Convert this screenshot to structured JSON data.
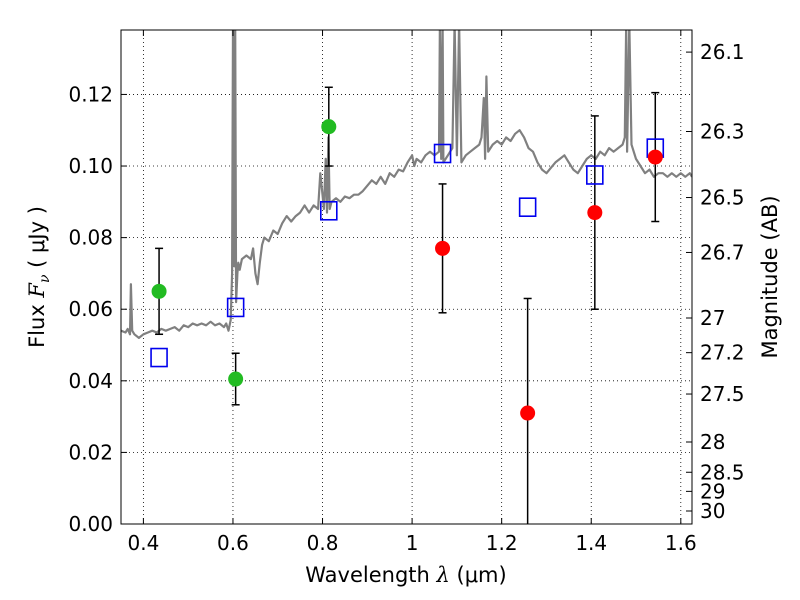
{
  "chart_data": {
    "type": "scatter",
    "xlabel_text": "Wavelength  ",
    "xlabel_symbol": "λ",
    "xlabel_unit": " (μm)",
    "ylabel_text": "Flux  ",
    "ylabel_symbol": "F",
    "ylabel_subscript": "ν",
    "ylabel_unit": "  ( μJy )",
    "y2label": "Magnitude (AB)",
    "xlim": [
      0.35,
      1.625
    ],
    "ylim": [
      0.0,
      0.138
    ],
    "grid": true,
    "x_ticks": [
      0.4,
      0.6,
      0.8,
      1.0,
      1.2,
      1.4,
      1.6
    ],
    "x_tick_labels": [
      "0.4",
      "0.6",
      "0.8",
      "1",
      "1.2",
      "1.4",
      "1.6"
    ],
    "y_ticks": [
      0.0,
      0.02,
      0.04,
      0.06,
      0.08,
      0.1,
      0.12
    ],
    "y_tick_labels": [
      "0.00",
      "0.02",
      "0.04",
      "0.06",
      "0.08",
      "0.10",
      "0.12"
    ],
    "y2_ticks": [
      {
        "mag": 26.1,
        "label": "26.1"
      },
      {
        "mag": 26.3,
        "label": "26.3"
      },
      {
        "mag": 26.5,
        "label": "26.5"
      },
      {
        "mag": 26.7,
        "label": "26.7"
      },
      {
        "mag": 27.0,
        "label": "27"
      },
      {
        "mag": 27.2,
        "label": "27.2"
      },
      {
        "mag": 27.5,
        "label": "27.5"
      },
      {
        "mag": 28.0,
        "label": "28"
      },
      {
        "mag": 28.5,
        "label": "28.5"
      },
      {
        "mag": 29.0,
        "label": "29"
      },
      {
        "mag": 30.0,
        "label": "30"
      }
    ],
    "colors": {
      "model": "#808080",
      "green": "#22bb22",
      "red": "#ff0000",
      "model_box": "#0000ee",
      "errorbar": "#000000"
    },
    "model_spectrum": {
      "x": [
        0.35,
        0.36,
        0.365,
        0.37,
        0.372,
        0.375,
        0.38,
        0.39,
        0.4,
        0.41,
        0.42,
        0.43,
        0.44,
        0.45,
        0.46,
        0.47,
        0.48,
        0.49,
        0.5,
        0.51,
        0.52,
        0.53,
        0.54,
        0.55,
        0.56,
        0.57,
        0.58,
        0.585,
        0.59,
        0.595,
        0.598,
        0.6,
        0.603,
        0.605,
        0.607,
        0.61,
        0.612,
        0.615,
        0.62,
        0.63,
        0.64,
        0.645,
        0.65,
        0.655,
        0.66,
        0.665,
        0.67,
        0.68,
        0.69,
        0.7,
        0.71,
        0.72,
        0.73,
        0.74,
        0.75,
        0.76,
        0.77,
        0.78,
        0.79,
        0.795,
        0.8,
        0.803,
        0.807,
        0.81,
        0.813,
        0.816,
        0.82,
        0.83,
        0.84,
        0.85,
        0.86,
        0.87,
        0.88,
        0.89,
        0.9,
        0.91,
        0.92,
        0.93,
        0.94,
        0.95,
        0.96,
        0.97,
        0.98,
        0.99,
        1.0,
        1.005,
        1.01,
        1.02,
        1.03,
        1.04,
        1.05,
        1.06,
        1.062,
        1.065,
        1.068,
        1.07,
        1.08,
        1.09,
        1.095,
        1.1,
        1.105,
        1.11,
        1.12,
        1.13,
        1.14,
        1.15,
        1.155,
        1.16,
        1.163,
        1.166,
        1.17,
        1.18,
        1.19,
        1.2,
        1.21,
        1.22,
        1.23,
        1.24,
        1.25,
        1.26,
        1.27,
        1.28,
        1.29,
        1.3,
        1.31,
        1.32,
        1.33,
        1.34,
        1.35,
        1.36,
        1.37,
        1.38,
        1.39,
        1.4,
        1.41,
        1.42,
        1.43,
        1.44,
        1.45,
        1.46,
        1.47,
        1.475,
        1.478,
        1.48,
        1.485,
        1.49,
        1.5,
        1.51,
        1.52,
        1.53,
        1.54,
        1.55,
        1.56,
        1.57,
        1.58,
        1.59,
        1.6,
        1.61,
        1.62,
        1.625
      ],
      "y": [
        0.054,
        0.0535,
        0.0545,
        0.053,
        0.067,
        0.054,
        0.053,
        0.052,
        0.053,
        0.0535,
        0.054,
        0.0535,
        0.0545,
        0.054,
        0.0545,
        0.055,
        0.054,
        0.0555,
        0.055,
        0.056,
        0.0555,
        0.056,
        0.0555,
        0.0565,
        0.0555,
        0.056,
        0.055,
        0.056,
        0.054,
        0.057,
        0.07,
        0.14,
        0.072,
        0.14,
        0.062,
        0.07,
        0.073,
        0.071,
        0.074,
        0.075,
        0.074,
        0.077,
        0.07,
        0.067,
        0.073,
        0.078,
        0.08,
        0.079,
        0.082,
        0.081,
        0.084,
        0.086,
        0.0845,
        0.086,
        0.087,
        0.089,
        0.087,
        0.089,
        0.088,
        0.098,
        0.092,
        0.088,
        0.102,
        0.087,
        0.108,
        0.088,
        0.09,
        0.091,
        0.09,
        0.0915,
        0.091,
        0.092,
        0.092,
        0.093,
        0.0945,
        0.096,
        0.095,
        0.097,
        0.095,
        0.098,
        0.097,
        0.099,
        0.0985,
        0.101,
        0.103,
        0.1,
        0.102,
        0.101,
        0.103,
        0.104,
        0.103,
        0.104,
        0.14,
        0.102,
        0.14,
        0.101,
        0.103,
        0.105,
        0.14,
        0.103,
        0.14,
        0.101,
        0.103,
        0.104,
        0.105,
        0.106,
        0.108,
        0.119,
        0.102,
        0.125,
        0.104,
        0.106,
        0.107,
        0.106,
        0.108,
        0.107,
        0.109,
        0.11,
        0.108,
        0.105,
        0.104,
        0.101,
        0.099,
        0.098,
        0.0995,
        0.101,
        0.102,
        0.103,
        0.101,
        0.099,
        0.098,
        0.1,
        0.102,
        0.103,
        0.102,
        0.104,
        0.103,
        0.105,
        0.104,
        0.105,
        0.106,
        0.108,
        0.14,
        0.104,
        0.14,
        0.106,
        0.102,
        0.1,
        0.098,
        0.099,
        0.097,
        0.098,
        0.098,
        0.097,
        0.098,
        0.097,
        0.098,
        0.097,
        0.098,
        0.097
      ]
    },
    "green_points": [
      {
        "x": 0.435,
        "y": 0.065,
        "err": 0.012
      },
      {
        "x": 0.606,
        "y": 0.0405,
        "err": 0.0072
      },
      {
        "x": 0.814,
        "y": 0.111,
        "err": 0.011
      }
    ],
    "red_points": [
      {
        "x": 1.068,
        "y": 0.077,
        "err": 0.018
      },
      {
        "x": 1.258,
        "y": 0.031,
        "err": 0.032
      },
      {
        "x": 1.408,
        "y": 0.087,
        "err": 0.027
      },
      {
        "x": 1.543,
        "y": 0.1025,
        "err": 0.018
      }
    ],
    "model_boxes": [
      {
        "x": 0.435,
        "y": 0.0465
      },
      {
        "x": 0.606,
        "y": 0.0605
      },
      {
        "x": 0.814,
        "y": 0.0875
      },
      {
        "x": 1.068,
        "y": 0.1035
      },
      {
        "x": 1.258,
        "y": 0.0885
      },
      {
        "x": 1.408,
        "y": 0.0975
      },
      {
        "x": 1.543,
        "y": 0.105
      }
    ]
  }
}
